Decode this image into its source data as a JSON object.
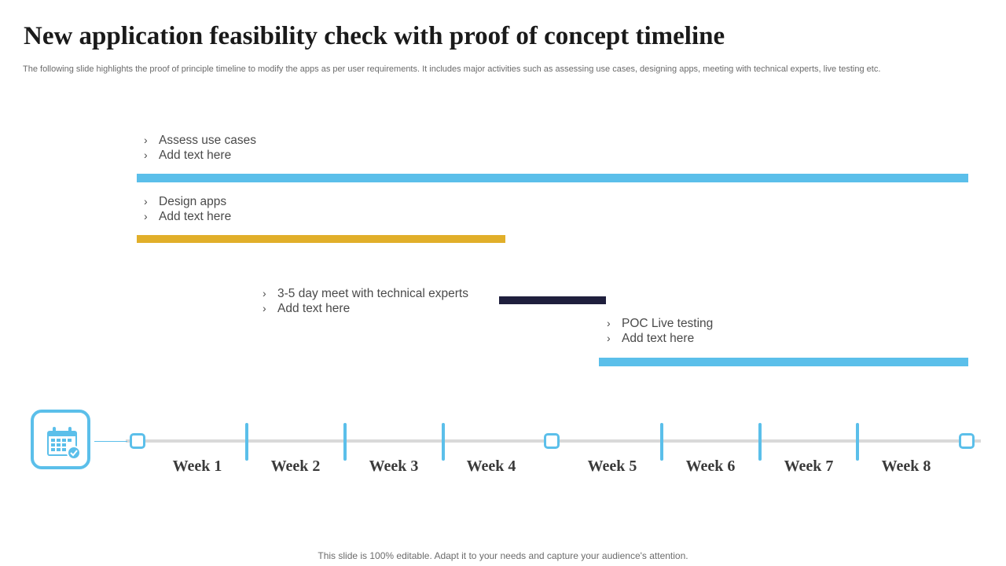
{
  "slide": {
    "title": "New application feasibility check with proof of concept timeline",
    "subtitle": "The following slide highlights the proof of principle timeline to modify the apps as per user requirements. It includes major activities such as assessing use cases, designing apps, meeting with technical experts, live testing etc.",
    "footer": "This slide is 100% editable. Adapt it to your needs and capture your audience's attention."
  },
  "tasks": [
    {
      "label": "Assess use cases",
      "detail": "Add text here",
      "color": "#5bbfea",
      "start_week": 1,
      "end_week": 8
    },
    {
      "label": "Design apps",
      "detail": "Add text here",
      "color": "#e1af2a",
      "start_week": 1,
      "end_week": 4
    },
    {
      "label": "3-5 day meet with technical experts",
      "detail": "Add text here",
      "color": "#1f1f3d",
      "start_week": 4,
      "end_week": 5
    },
    {
      "label": "POC Live testing",
      "detail": "Add text here",
      "color": "#5bbfea",
      "start_week": 5,
      "end_week": 8
    }
  ],
  "bullet_glyph": "›",
  "timeline": {
    "icon": "calendar-icon",
    "accent_color": "#5bbfea",
    "weeks": [
      "Week 1",
      "Week 2",
      "Week 3",
      "Week 4",
      "Week 5",
      "Week 6",
      "Week 7",
      "Week 8"
    ]
  }
}
